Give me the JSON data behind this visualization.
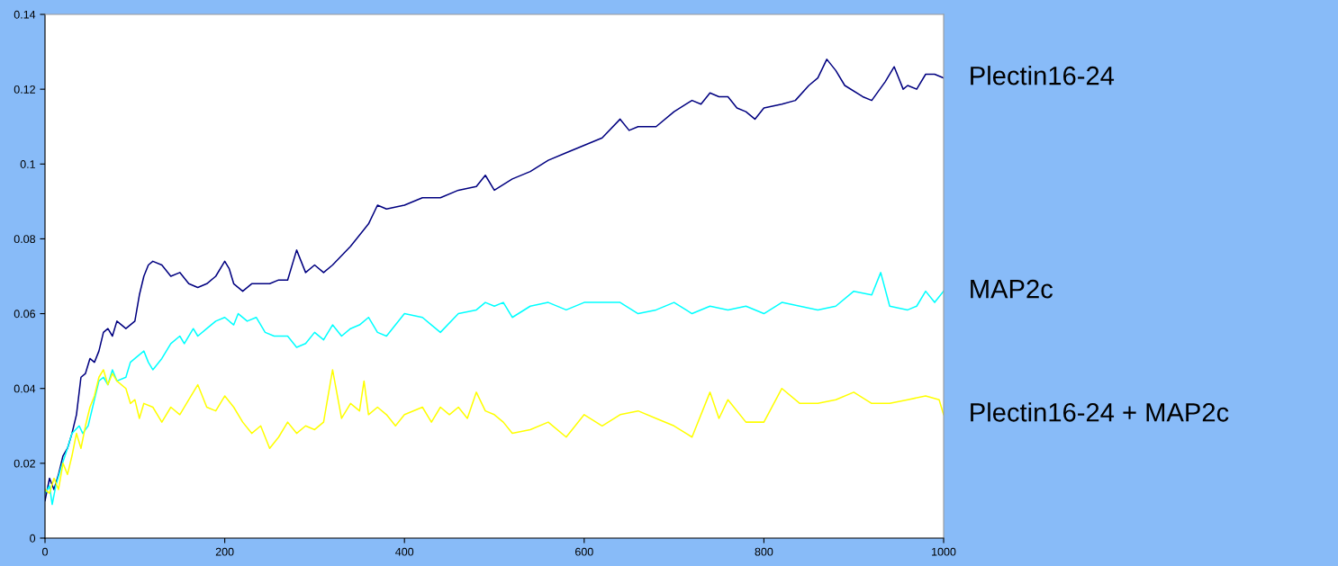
{
  "chart_data": {
    "type": "line",
    "xlim": [
      0,
      1000
    ],
    "ylim": [
      0,
      0.14
    ],
    "xticks": [
      0,
      200,
      400,
      600,
      800,
      1000
    ],
    "yticks": [
      0,
      0.02,
      0.04,
      0.06,
      0.08,
      0.1,
      0.12,
      0.14
    ],
    "grid": false,
    "legend": false,
    "marker": "none",
    "line_style": "solid",
    "series": [
      {
        "name": "Plectin16-24",
        "color": "#000080",
        "x": [
          0,
          5,
          10,
          15,
          20,
          25,
          30,
          35,
          40,
          45,
          50,
          55,
          60,
          65,
          70,
          75,
          80,
          90,
          100,
          105,
          110,
          115,
          120,
          130,
          140,
          150,
          160,
          170,
          180,
          190,
          200,
          205,
          210,
          220,
          230,
          240,
          250,
          260,
          270,
          280,
          290,
          300,
          310,
          320,
          340,
          360,
          370,
          380,
          400,
          420,
          440,
          460,
          480,
          490,
          500,
          520,
          540,
          560,
          580,
          600,
          620,
          640,
          650,
          660,
          680,
          700,
          720,
          730,
          740,
          750,
          760,
          770,
          780,
          790,
          800,
          820,
          835,
          850,
          860,
          870,
          880,
          890,
          910,
          920,
          935,
          945,
          955,
          960,
          970,
          980,
          990,
          1000
        ],
        "values": [
          0.01,
          0.016,
          0.013,
          0.017,
          0.022,
          0.024,
          0.028,
          0.033,
          0.043,
          0.044,
          0.048,
          0.047,
          0.05,
          0.055,
          0.056,
          0.054,
          0.058,
          0.056,
          0.058,
          0.065,
          0.07,
          0.073,
          0.074,
          0.073,
          0.07,
          0.071,
          0.068,
          0.067,
          0.068,
          0.07,
          0.074,
          0.072,
          0.068,
          0.066,
          0.068,
          0.068,
          0.068,
          0.069,
          0.069,
          0.077,
          0.071,
          0.073,
          0.071,
          0.073,
          0.078,
          0.084,
          0.089,
          0.088,
          0.089,
          0.091,
          0.091,
          0.093,
          0.094,
          0.097,
          0.093,
          0.096,
          0.098,
          0.101,
          0.103,
          0.105,
          0.107,
          0.112,
          0.109,
          0.11,
          0.11,
          0.114,
          0.117,
          0.116,
          0.119,
          0.118,
          0.118,
          0.115,
          0.114,
          0.112,
          0.115,
          0.116,
          0.117,
          0.121,
          0.123,
          0.128,
          0.125,
          0.121,
          0.118,
          0.117,
          0.122,
          0.126,
          0.12,
          0.121,
          0.12,
          0.124,
          0.124,
          0.123
        ]
      },
      {
        "name": "MAP2c",
        "color": "#00ffff",
        "x": [
          0,
          5,
          8,
          12,
          18,
          25,
          30,
          38,
          42,
          48,
          55,
          60,
          65,
          70,
          75,
          80,
          90,
          95,
          100,
          110,
          115,
          120,
          130,
          140,
          150,
          155,
          165,
          170,
          180,
          190,
          200,
          210,
          215,
          225,
          235,
          245,
          255,
          270,
          280,
          290,
          300,
          310,
          320,
          330,
          340,
          350,
          360,
          370,
          380,
          390,
          400,
          420,
          430,
          440,
          460,
          480,
          490,
          500,
          510,
          520,
          540,
          560,
          580,
          600,
          620,
          640,
          660,
          680,
          700,
          720,
          740,
          760,
          780,
          800,
          820,
          840,
          860,
          880,
          900,
          920,
          930,
          940,
          960,
          970,
          980,
          990,
          1000
        ],
        "values": [
          0.012,
          0.014,
          0.009,
          0.014,
          0.019,
          0.024,
          0.028,
          0.03,
          0.028,
          0.03,
          0.037,
          0.042,
          0.043,
          0.041,
          0.045,
          0.042,
          0.043,
          0.047,
          0.048,
          0.05,
          0.047,
          0.045,
          0.048,
          0.052,
          0.054,
          0.052,
          0.056,
          0.054,
          0.056,
          0.058,
          0.059,
          0.057,
          0.06,
          0.058,
          0.059,
          0.055,
          0.054,
          0.054,
          0.051,
          0.052,
          0.055,
          0.053,
          0.057,
          0.054,
          0.056,
          0.057,
          0.059,
          0.055,
          0.054,
          0.057,
          0.06,
          0.059,
          0.057,
          0.055,
          0.06,
          0.061,
          0.063,
          0.062,
          0.063,
          0.059,
          0.062,
          0.063,
          0.061,
          0.063,
          0.063,
          0.063,
          0.06,
          0.061,
          0.063,
          0.06,
          0.062,
          0.061,
          0.062,
          0.06,
          0.063,
          0.062,
          0.061,
          0.062,
          0.066,
          0.065,
          0.071,
          0.062,
          0.061,
          0.062,
          0.066,
          0.063,
          0.066
        ]
      },
      {
        "name": "Plectin16-24 + MAP2c",
        "color": "#ffff00",
        "x": [
          0,
          5,
          10,
          15,
          20,
          25,
          30,
          35,
          40,
          45,
          50,
          55,
          60,
          65,
          70,
          75,
          80,
          90,
          95,
          100,
          105,
          110,
          120,
          130,
          140,
          150,
          160,
          170,
          180,
          190,
          200,
          210,
          220,
          230,
          240,
          250,
          260,
          270,
          280,
          290,
          300,
          310,
          320,
          330,
          340,
          350,
          355,
          360,
          370,
          380,
          390,
          400,
          420,
          430,
          440,
          450,
          460,
          470,
          480,
          490,
          500,
          510,
          520,
          540,
          560,
          580,
          600,
          620,
          640,
          660,
          680,
          700,
          720,
          740,
          750,
          760,
          780,
          800,
          820,
          840,
          860,
          880,
          900,
          920,
          940,
          960,
          980,
          995,
          1000
        ],
        "values": [
          0.013,
          0.012,
          0.016,
          0.013,
          0.02,
          0.017,
          0.022,
          0.028,
          0.024,
          0.03,
          0.035,
          0.038,
          0.043,
          0.045,
          0.041,
          0.044,
          0.042,
          0.04,
          0.036,
          0.037,
          0.032,
          0.036,
          0.035,
          0.031,
          0.035,
          0.033,
          0.037,
          0.041,
          0.035,
          0.034,
          0.038,
          0.035,
          0.031,
          0.028,
          0.03,
          0.024,
          0.027,
          0.031,
          0.028,
          0.03,
          0.029,
          0.031,
          0.045,
          0.032,
          0.036,
          0.034,
          0.042,
          0.033,
          0.035,
          0.033,
          0.03,
          0.033,
          0.035,
          0.031,
          0.035,
          0.033,
          0.035,
          0.032,
          0.039,
          0.034,
          0.033,
          0.031,
          0.028,
          0.029,
          0.031,
          0.027,
          0.033,
          0.03,
          0.033,
          0.034,
          0.032,
          0.03,
          0.027,
          0.039,
          0.032,
          0.037,
          0.031,
          0.031,
          0.04,
          0.036,
          0.036,
          0.037,
          0.039,
          0.036,
          0.036,
          0.037,
          0.038,
          0.037,
          0.033
        ]
      }
    ]
  }
}
